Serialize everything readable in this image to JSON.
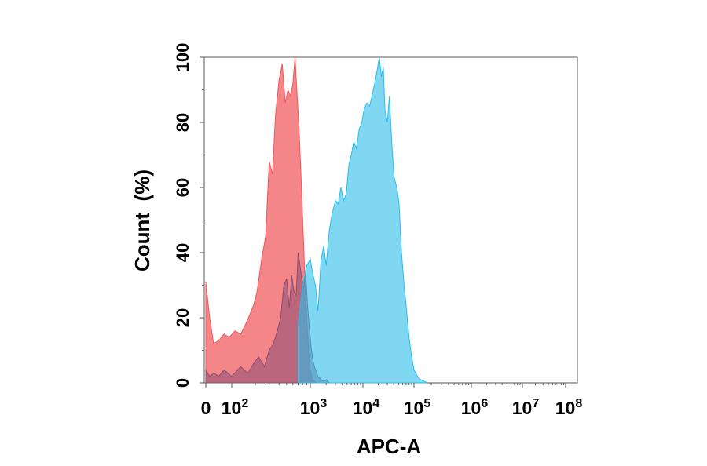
{
  "chart_data": {
    "type": "area",
    "title": "",
    "xlabel": "APC-A",
    "ylabel": "Count  (%)",
    "xscale": "biexponential",
    "ylim": [
      0,
      100
    ],
    "grid": false,
    "legend": "none",
    "x_ticks": [
      {
        "value": 0,
        "base": "0",
        "exp": ""
      },
      {
        "value": 100,
        "base": "10",
        "exp": "2"
      },
      {
        "value": 1000,
        "base": "10",
        "exp": "3"
      },
      {
        "value": 10000,
        "base": "10",
        "exp": "4"
      },
      {
        "value": 100000,
        "base": "10",
        "exp": "5"
      },
      {
        "value": 1000000,
        "base": "10",
        "exp": "6"
      },
      {
        "value": 10000000,
        "base": "10",
        "exp": "7"
      },
      {
        "value": 100000000,
        "base": "10",
        "exp": "8"
      }
    ],
    "y_ticks": [
      "0",
      "20",
      "40",
      "60",
      "80",
      "100"
    ],
    "series": [
      {
        "color": "#f0585c",
        "fill_opacity": 0.72,
        "x": [
          0,
          15,
          30,
          50,
          70,
          90,
          110,
          130,
          150,
          170,
          190,
          210,
          240,
          270,
          300,
          330,
          360,
          400,
          440,
          480,
          520,
          560,
          600,
          640,
          680,
          720,
          760,
          800,
          850,
          900,
          950,
          1000,
          1100,
          1200,
          1300
        ],
        "y": [
          31,
          20,
          12,
          13,
          15,
          14,
          16,
          15,
          18,
          21,
          24,
          28,
          38,
          45,
          68,
          64,
          82,
          93,
          98,
          86,
          90,
          88,
          92,
          100,
          88,
          78,
          64,
          50,
          34,
          20,
          10,
          4,
          1,
          0.5,
          0
        ]
      },
      {
        "color": "#8b4f72",
        "fill_opacity": 0.55,
        "x": [
          0,
          15,
          30,
          50,
          70,
          100,
          130,
          160,
          190,
          220,
          260,
          300,
          340,
          380,
          420,
          460,
          500,
          540,
          580,
          620,
          660,
          700,
          740,
          780,
          820,
          870,
          920,
          980,
          1050,
          1150,
          1250,
          1400,
          1600,
          1800,
          2000,
          2300
        ],
        "y": [
          4,
          2,
          3,
          2,
          4,
          2,
          5,
          3,
          6,
          8,
          5,
          10,
          12,
          16,
          20,
          30,
          32,
          23,
          33,
          28,
          27,
          40,
          36,
          32,
          29,
          34,
          24,
          16,
          10,
          6,
          4,
          2,
          1,
          0.5,
          1,
          0
        ]
      },
      {
        "color": "#2bbcea",
        "fill_opacity": 0.6,
        "x": [
          700,
          800,
          900,
          1000,
          1100,
          1250,
          1400,
          1600,
          1800,
          2000,
          2300,
          2600,
          3000,
          3400,
          3800,
          4300,
          4800,
          5400,
          6000,
          6700,
          7500,
          8500,
          9500,
          10500,
          12000,
          13500,
          15000,
          17000,
          19000,
          21000,
          23000,
          25000,
          27000,
          30000,
          33000,
          37000,
          41000,
          46000,
          51000,
          57000,
          64000,
          72000,
          80000,
          90000,
          100000,
          115000,
          130000,
          150000,
          170000
        ],
        "y": [
          18,
          30,
          36,
          38,
          34,
          30,
          22,
          38,
          42,
          36,
          47,
          52,
          56,
          55,
          60,
          56,
          58,
          67,
          70,
          74,
          72,
          78,
          80,
          84,
          86,
          85,
          88,
          92,
          96,
          100,
          94,
          97,
          84,
          80,
          88,
          73,
          63,
          60,
          55,
          40,
          30,
          22,
          14,
          8,
          4,
          2,
          1,
          0.5,
          0
        ]
      }
    ]
  }
}
